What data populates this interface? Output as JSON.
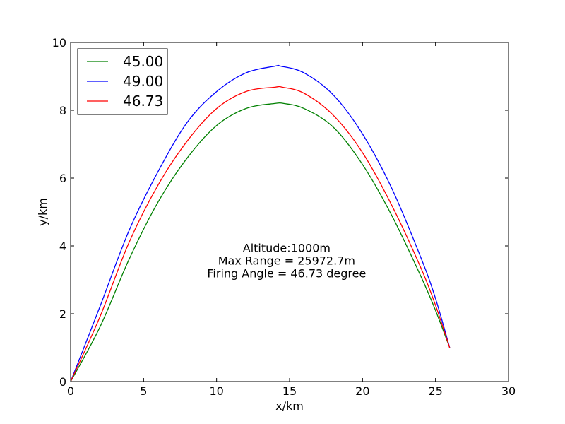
{
  "chart_data": {
    "type": "line",
    "xlabel": "x/km",
    "ylabel": "y/km",
    "xlim": [
      0,
      30
    ],
    "ylim": [
      0,
      10
    ],
    "xticks": [
      "0",
      "5",
      "10",
      "15",
      "20",
      "25",
      "30"
    ],
    "yticks": [
      "0",
      "2",
      "4",
      "6",
      "8",
      "10"
    ],
    "grid": false,
    "legend_position": "top-left",
    "series": [
      {
        "name": "45.00",
        "color": "#008000",
        "x": [
          0,
          2,
          4,
          6,
          8,
          10,
          12,
          14,
          14.6,
          16,
          18,
          20,
          22,
          24,
          25,
          25.97
        ],
        "y": [
          0,
          1.6,
          3.6,
          5.3,
          6.6,
          7.55,
          8.05,
          8.2,
          8.2,
          8.05,
          7.5,
          6.4,
          4.9,
          3.1,
          2.1,
          1.0
        ]
      },
      {
        "name": "49.00",
        "color": "#0000ff",
        "x": [
          0,
          2,
          4,
          6,
          8,
          10,
          12,
          14,
          14.4,
          16,
          18,
          20,
          22,
          24,
          25,
          25.97
        ],
        "y": [
          0,
          2.2,
          4.45,
          6.2,
          7.65,
          8.55,
          9.1,
          9.3,
          9.3,
          9.1,
          8.45,
          7.3,
          5.7,
          3.65,
          2.45,
          1.0
        ]
      },
      {
        "name": "46.73",
        "color": "#ff0000",
        "x": [
          0,
          2,
          4,
          6,
          8,
          10,
          12,
          14,
          14.5,
          16,
          18,
          20,
          22,
          24,
          25,
          25.97
        ],
        "y": [
          0,
          1.9,
          4.1,
          5.8,
          7.1,
          8.05,
          8.55,
          8.68,
          8.68,
          8.5,
          7.85,
          6.75,
          5.2,
          3.35,
          2.25,
          1.0
        ]
      }
    ],
    "annotation": {
      "line1": "Altitude:1000m",
      "line2": "Max Range = 25972.7m",
      "line3": "Firing Angle = 46.73 degree",
      "x": 14.8,
      "y": 3.2
    }
  }
}
